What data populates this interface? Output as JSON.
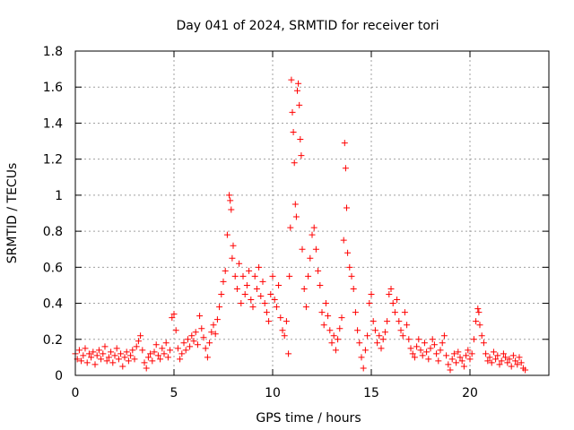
{
  "chart_data": {
    "type": "scatter",
    "title": "Day 041 of 2024, SRMTID for receiver tori",
    "xlabel": "GPS time / hours",
    "ylabel": "SRMTID / TECUs",
    "xlim": [
      0,
      24
    ],
    "ylim": [
      0,
      1.8
    ],
    "xticks": [
      0,
      5,
      10,
      15,
      20
    ],
    "yticks": [
      0,
      0.2,
      0.4,
      0.6,
      0.8,
      1,
      1.2,
      1.4,
      1.6,
      1.8
    ],
    "ytick_labels": [
      "0",
      "0.2",
      "0.4",
      "0.6",
      "0.8",
      "1",
      "1.2",
      "1.4",
      "1.6",
      "1.8"
    ],
    "grid": true,
    "marker": "+",
    "color": "#ff0000",
    "series": [
      {
        "name": "SRMTID",
        "points": [
          [
            0.0,
            0.12
          ],
          [
            0.1,
            0.09
          ],
          [
            0.2,
            0.14
          ],
          [
            0.3,
            0.08
          ],
          [
            0.4,
            0.11
          ],
          [
            0.5,
            0.15
          ],
          [
            0.6,
            0.07
          ],
          [
            0.7,
            0.12
          ],
          [
            0.8,
            0.1
          ],
          [
            0.9,
            0.13
          ],
          [
            1.0,
            0.06
          ],
          [
            1.1,
            0.11
          ],
          [
            1.2,
            0.14
          ],
          [
            1.3,
            0.09
          ],
          [
            1.4,
            0.12
          ],
          [
            1.5,
            0.16
          ],
          [
            1.6,
            0.08
          ],
          [
            1.7,
            0.1
          ],
          [
            1.8,
            0.13
          ],
          [
            1.9,
            0.07
          ],
          [
            2.0,
            0.11
          ],
          [
            2.1,
            0.15
          ],
          [
            2.2,
            0.09
          ],
          [
            2.3,
            0.12
          ],
          [
            2.4,
            0.05
          ],
          [
            2.5,
            0.1
          ],
          [
            2.6,
            0.13
          ],
          [
            2.7,
            0.08
          ],
          [
            2.8,
            0.11
          ],
          [
            2.9,
            0.14
          ],
          [
            3.0,
            0.09
          ],
          [
            3.1,
            0.16
          ],
          [
            3.2,
            0.19
          ],
          [
            3.3,
            0.22
          ],
          [
            3.4,
            0.14
          ],
          [
            3.5,
            0.07
          ],
          [
            3.6,
            0.04
          ],
          [
            3.7,
            0.1
          ],
          [
            3.8,
            0.12
          ],
          [
            3.9,
            0.08
          ],
          [
            4.0,
            0.13
          ],
          [
            4.1,
            0.17
          ],
          [
            4.2,
            0.11
          ],
          [
            4.3,
            0.09
          ],
          [
            4.4,
            0.15
          ],
          [
            4.5,
            0.12
          ],
          [
            4.6,
            0.18
          ],
          [
            4.7,
            0.1
          ],
          [
            4.8,
            0.14
          ],
          [
            4.9,
            0.32
          ],
          [
            5.0,
            0.34
          ],
          [
            5.1,
            0.25
          ],
          [
            5.2,
            0.15
          ],
          [
            5.3,
            0.09
          ],
          [
            5.4,
            0.12
          ],
          [
            5.5,
            0.18
          ],
          [
            5.6,
            0.14
          ],
          [
            5.7,
            0.2
          ],
          [
            5.8,
            0.16
          ],
          [
            5.9,
            0.22
          ],
          [
            6.0,
            0.19
          ],
          [
            6.1,
            0.24
          ],
          [
            6.2,
            0.17
          ],
          [
            6.3,
            0.33
          ],
          [
            6.4,
            0.26
          ],
          [
            6.5,
            0.21
          ],
          [
            6.6,
            0.15
          ],
          [
            6.7,
            0.1
          ],
          [
            6.8,
            0.18
          ],
          [
            6.9,
            0.24
          ],
          [
            7.0,
            0.28
          ],
          [
            7.1,
            0.23
          ],
          [
            7.2,
            0.31
          ],
          [
            7.3,
            0.38
          ],
          [
            7.4,
            0.45
          ],
          [
            7.5,
            0.52
          ],
          [
            7.6,
            0.58
          ],
          [
            7.7,
            0.78
          ],
          [
            7.8,
            1.0
          ],
          [
            7.85,
            0.97
          ],
          [
            7.9,
            0.92
          ],
          [
            7.95,
            0.65
          ],
          [
            8.0,
            0.72
          ],
          [
            8.1,
            0.55
          ],
          [
            8.2,
            0.48
          ],
          [
            8.3,
            0.62
          ],
          [
            8.4,
            0.4
          ],
          [
            8.5,
            0.55
          ],
          [
            8.6,
            0.45
          ],
          [
            8.7,
            0.5
          ],
          [
            8.8,
            0.58
          ],
          [
            8.9,
            0.42
          ],
          [
            9.0,
            0.38
          ],
          [
            9.1,
            0.55
          ],
          [
            9.2,
            0.48
          ],
          [
            9.3,
            0.6
          ],
          [
            9.4,
            0.44
          ],
          [
            9.5,
            0.52
          ],
          [
            9.6,
            0.4
          ],
          [
            9.7,
            0.35
          ],
          [
            9.8,
            0.3
          ],
          [
            9.9,
            0.45
          ],
          [
            10.0,
            0.55
          ],
          [
            10.1,
            0.42
          ],
          [
            10.2,
            0.38
          ],
          [
            10.3,
            0.5
          ],
          [
            10.4,
            0.32
          ],
          [
            10.5,
            0.25
          ],
          [
            10.6,
            0.22
          ],
          [
            10.7,
            0.3
          ],
          [
            10.8,
            0.12
          ],
          [
            10.85,
            0.55
          ],
          [
            10.9,
            0.82
          ],
          [
            10.95,
            1.64
          ],
          [
            11.0,
            1.46
          ],
          [
            11.05,
            1.35
          ],
          [
            11.1,
            1.18
          ],
          [
            11.15,
            0.95
          ],
          [
            11.2,
            0.88
          ],
          [
            11.25,
            1.58
          ],
          [
            11.3,
            1.62
          ],
          [
            11.35,
            1.5
          ],
          [
            11.4,
            1.31
          ],
          [
            11.45,
            1.22
          ],
          [
            11.5,
            0.7
          ],
          [
            11.6,
            0.48
          ],
          [
            11.7,
            0.38
          ],
          [
            11.8,
            0.55
          ],
          [
            11.9,
            0.65
          ],
          [
            12.0,
            0.78
          ],
          [
            12.1,
            0.82
          ],
          [
            12.2,
            0.7
          ],
          [
            12.3,
            0.58
          ],
          [
            12.4,
            0.5
          ],
          [
            12.5,
            0.35
          ],
          [
            12.6,
            0.28
          ],
          [
            12.7,
            0.4
          ],
          [
            12.8,
            0.33
          ],
          [
            12.9,
            0.25
          ],
          [
            13.0,
            0.18
          ],
          [
            13.1,
            0.22
          ],
          [
            13.2,
            0.14
          ],
          [
            13.3,
            0.2
          ],
          [
            13.4,
            0.26
          ],
          [
            13.5,
            0.32
          ],
          [
            13.6,
            0.75
          ],
          [
            13.65,
            1.29
          ],
          [
            13.7,
            1.15
          ],
          [
            13.75,
            0.93
          ],
          [
            13.8,
            0.68
          ],
          [
            13.9,
            0.6
          ],
          [
            14.0,
            0.55
          ],
          [
            14.1,
            0.48
          ],
          [
            14.2,
            0.35
          ],
          [
            14.3,
            0.25
          ],
          [
            14.4,
            0.18
          ],
          [
            14.5,
            0.1
          ],
          [
            14.6,
            0.04
          ],
          [
            14.7,
            0.14
          ],
          [
            14.8,
            0.22
          ],
          [
            14.9,
            0.4
          ],
          [
            15.0,
            0.45
          ],
          [
            15.1,
            0.3
          ],
          [
            15.2,
            0.25
          ],
          [
            15.3,
            0.18
          ],
          [
            15.4,
            0.22
          ],
          [
            15.5,
            0.15
          ],
          [
            15.6,
            0.2
          ],
          [
            15.7,
            0.24
          ],
          [
            15.8,
            0.3
          ],
          [
            15.9,
            0.45
          ],
          [
            16.0,
            0.48
          ],
          [
            16.1,
            0.4
          ],
          [
            16.2,
            0.35
          ],
          [
            16.3,
            0.42
          ],
          [
            16.4,
            0.3
          ],
          [
            16.5,
            0.25
          ],
          [
            16.6,
            0.22
          ],
          [
            16.7,
            0.35
          ],
          [
            16.8,
            0.28
          ],
          [
            16.9,
            0.2
          ],
          [
            17.0,
            0.15
          ],
          [
            17.1,
            0.12
          ],
          [
            17.2,
            0.1
          ],
          [
            17.3,
            0.16
          ],
          [
            17.4,
            0.2
          ],
          [
            17.5,
            0.14
          ],
          [
            17.6,
            0.11
          ],
          [
            17.7,
            0.18
          ],
          [
            17.8,
            0.13
          ],
          [
            17.9,
            0.09
          ],
          [
            18.0,
            0.15
          ],
          [
            18.1,
            0.2
          ],
          [
            18.2,
            0.17
          ],
          [
            18.3,
            0.12
          ],
          [
            18.4,
            0.08
          ],
          [
            18.5,
            0.14
          ],
          [
            18.6,
            0.18
          ],
          [
            18.7,
            0.22
          ],
          [
            18.8,
            0.11
          ],
          [
            18.9,
            0.06
          ],
          [
            19.0,
            0.03
          ],
          [
            19.1,
            0.09
          ],
          [
            19.2,
            0.12
          ],
          [
            19.3,
            0.07
          ],
          [
            19.4,
            0.13
          ],
          [
            19.5,
            0.1
          ],
          [
            19.6,
            0.08
          ],
          [
            19.7,
            0.05
          ],
          [
            19.8,
            0.11
          ],
          [
            19.9,
            0.14
          ],
          [
            20.0,
            0.09
          ],
          [
            20.1,
            0.12
          ],
          [
            20.2,
            0.2
          ],
          [
            20.3,
            0.3
          ],
          [
            20.4,
            0.37
          ],
          [
            20.45,
            0.35
          ],
          [
            20.5,
            0.28
          ],
          [
            20.6,
            0.22
          ],
          [
            20.7,
            0.18
          ],
          [
            20.8,
            0.12
          ],
          [
            20.9,
            0.08
          ],
          [
            21.0,
            0.1
          ],
          [
            21.1,
            0.07
          ],
          [
            21.2,
            0.13
          ],
          [
            21.3,
            0.09
          ],
          [
            21.4,
            0.11
          ],
          [
            21.5,
            0.06
          ],
          [
            21.6,
            0.08
          ],
          [
            21.7,
            0.12
          ],
          [
            21.8,
            0.1
          ],
          [
            21.9,
            0.07
          ],
          [
            22.0,
            0.09
          ],
          [
            22.1,
            0.05
          ],
          [
            22.2,
            0.11
          ],
          [
            22.3,
            0.08
          ],
          [
            22.4,
            0.06
          ],
          [
            22.5,
            0.1
          ],
          [
            22.6,
            0.07
          ],
          [
            22.7,
            0.04
          ],
          [
            22.8,
            0.03
          ]
        ]
      }
    ]
  }
}
